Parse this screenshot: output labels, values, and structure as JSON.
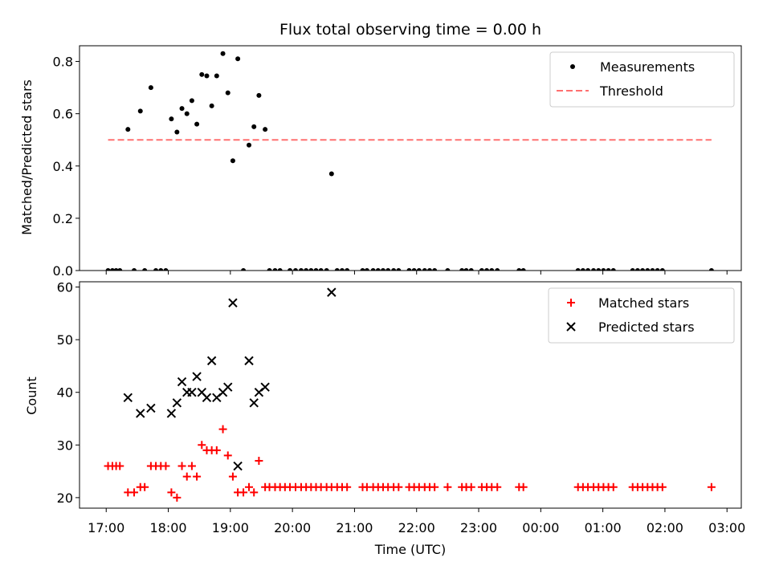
{
  "chart_data": [
    {
      "type": "scatter",
      "title": "Flux total observing time = 0.00 h",
      "ylabel": "Matched/Predicted stars",
      "xlabel": "",
      "ylim": [
        0,
        0.86
      ],
      "xlim_hours": [
        16.57,
        27.23
      ],
      "yticks": [
        0,
        0.2,
        0.4,
        0.6,
        0.8
      ],
      "ytick_labels": [
        "0.0",
        "0.2",
        "0.4",
        "0.6",
        "0.8"
      ],
      "legend_position": "top-right",
      "series": [
        {
          "name": "Measurements",
          "marker": "dot",
          "color": "#000000",
          "points": [
            [
              17.35,
              0.54
            ],
            [
              17.55,
              0.61
            ],
            [
              17.72,
              0.7
            ],
            [
              18.05,
              0.58
            ],
            [
              18.14,
              0.53
            ],
            [
              18.22,
              0.62
            ],
            [
              18.3,
              0.6
            ],
            [
              18.38,
              0.65
            ],
            [
              18.46,
              0.56
            ],
            [
              18.54,
              0.75
            ],
            [
              18.62,
              0.745
            ],
            [
              18.7,
              0.63
            ],
            [
              18.78,
              0.745
            ],
            [
              18.88,
              0.83
            ],
            [
              18.96,
              0.68
            ],
            [
              19.04,
              0.42
            ],
            [
              19.12,
              0.81
            ],
            [
              19.3,
              0.48
            ],
            [
              19.38,
              0.55
            ],
            [
              19.46,
              0.67
            ],
            [
              19.56,
              0.54
            ],
            [
              20.63,
              0.37
            ],
            [
              17.03,
              0
            ],
            [
              17.1,
              0
            ],
            [
              17.16,
              0
            ],
            [
              17.22,
              0
            ],
            [
              17.45,
              0
            ],
            [
              17.62,
              0
            ],
            [
              17.8,
              0
            ],
            [
              17.88,
              0
            ],
            [
              17.96,
              0
            ],
            [
              19.21,
              0
            ],
            [
              19.63,
              0
            ],
            [
              19.72,
              0
            ],
            [
              19.8,
              0
            ],
            [
              19.96,
              0
            ],
            [
              20.05,
              0
            ],
            [
              20.14,
              0
            ],
            [
              20.22,
              0
            ],
            [
              20.3,
              0
            ],
            [
              20.38,
              0
            ],
            [
              20.46,
              0
            ],
            [
              20.55,
              0
            ],
            [
              20.72,
              0
            ],
            [
              20.8,
              0
            ],
            [
              20.88,
              0
            ],
            [
              21.13,
              0
            ],
            [
              21.2,
              0
            ],
            [
              21.3,
              0
            ],
            [
              21.38,
              0
            ],
            [
              21.46,
              0
            ],
            [
              21.54,
              0
            ],
            [
              21.63,
              0
            ],
            [
              21.71,
              0
            ],
            [
              21.88,
              0
            ],
            [
              21.96,
              0
            ],
            [
              22.04,
              0
            ],
            [
              22.13,
              0
            ],
            [
              22.21,
              0
            ],
            [
              22.29,
              0
            ],
            [
              22.5,
              0
            ],
            [
              22.73,
              0
            ],
            [
              22.8,
              0
            ],
            [
              22.88,
              0
            ],
            [
              23.05,
              0
            ],
            [
              23.13,
              0
            ],
            [
              23.21,
              0
            ],
            [
              23.3,
              0
            ],
            [
              23.65,
              0
            ],
            [
              23.72,
              0
            ],
            [
              24.6,
              0
            ],
            [
              24.68,
              0
            ],
            [
              24.76,
              0
            ],
            [
              24.85,
              0
            ],
            [
              24.93,
              0
            ],
            [
              25.01,
              0
            ],
            [
              25.09,
              0
            ],
            [
              25.17,
              0
            ],
            [
              25.48,
              0
            ],
            [
              25.56,
              0
            ],
            [
              25.64,
              0
            ],
            [
              25.72,
              0
            ],
            [
              25.8,
              0
            ],
            [
              25.88,
              0
            ],
            [
              25.96,
              0
            ],
            [
              26.75,
              0
            ]
          ]
        },
        {
          "name": "Threshold",
          "style": "dashed",
          "color": "#ff7070",
          "x": [
            17.03,
            26.75
          ],
          "y": [
            0.5,
            0.5
          ]
        }
      ]
    },
    {
      "type": "scatter",
      "title": "",
      "ylabel": "Count",
      "xlabel": "Time (UTC)",
      "ylim": [
        18,
        61
      ],
      "xlim_hours": [
        16.57,
        27.23
      ],
      "yticks": [
        20,
        30,
        40,
        50,
        60
      ],
      "ytick_labels": [
        "20",
        "30",
        "40",
        "50",
        "60"
      ],
      "xticks_hours": [
        17,
        18,
        19,
        20,
        21,
        22,
        23,
        24,
        25,
        26,
        27
      ],
      "xtick_labels": [
        "17:00",
        "18:00",
        "19:00",
        "20:00",
        "21:00",
        "22:00",
        "23:00",
        "00:00",
        "01:00",
        "02:00",
        "03:00"
      ],
      "legend_position": "top-right",
      "series": [
        {
          "name": "Matched stars",
          "marker": "plus",
          "color": "#ff0000",
          "points": [
            [
              17.03,
              26
            ],
            [
              17.1,
              26
            ],
            [
              17.16,
              26
            ],
            [
              17.22,
              26
            ],
            [
              17.35,
              21
            ],
            [
              17.45,
              21
            ],
            [
              17.55,
              22
            ],
            [
              17.62,
              22
            ],
            [
              17.72,
              26
            ],
            [
              17.8,
              26
            ],
            [
              17.88,
              26
            ],
            [
              17.96,
              26
            ],
            [
              18.05,
              21
            ],
            [
              18.14,
              20
            ],
            [
              18.22,
              26
            ],
            [
              18.3,
              24
            ],
            [
              18.38,
              26
            ],
            [
              18.46,
              24
            ],
            [
              18.54,
              30
            ],
            [
              18.62,
              29
            ],
            [
              18.7,
              29
            ],
            [
              18.78,
              29
            ],
            [
              18.88,
              33
            ],
            [
              18.96,
              28
            ],
            [
              19.04,
              24
            ],
            [
              19.12,
              21
            ],
            [
              19.21,
              21
            ],
            [
              19.3,
              22
            ],
            [
              19.38,
              21
            ],
            [
              19.46,
              27
            ],
            [
              19.56,
              22
            ],
            [
              19.63,
              22
            ],
            [
              19.72,
              22
            ],
            [
              19.8,
              22
            ],
            [
              19.88,
              22
            ],
            [
              19.96,
              22
            ],
            [
              20.05,
              22
            ],
            [
              20.14,
              22
            ],
            [
              20.22,
              22
            ],
            [
              20.3,
              22
            ],
            [
              20.38,
              22
            ],
            [
              20.46,
              22
            ],
            [
              20.55,
              22
            ],
            [
              20.63,
              22
            ],
            [
              20.72,
              22
            ],
            [
              20.8,
              22
            ],
            [
              20.88,
              22
            ],
            [
              21.13,
              22
            ],
            [
              21.2,
              22
            ],
            [
              21.3,
              22
            ],
            [
              21.38,
              22
            ],
            [
              21.46,
              22
            ],
            [
              21.54,
              22
            ],
            [
              21.63,
              22
            ],
            [
              21.71,
              22
            ],
            [
              21.88,
              22
            ],
            [
              21.96,
              22
            ],
            [
              22.04,
              22
            ],
            [
              22.13,
              22
            ],
            [
              22.21,
              22
            ],
            [
              22.29,
              22
            ],
            [
              22.5,
              22
            ],
            [
              22.73,
              22
            ],
            [
              22.8,
              22
            ],
            [
              22.88,
              22
            ],
            [
              23.05,
              22
            ],
            [
              23.13,
              22
            ],
            [
              23.21,
              22
            ],
            [
              23.3,
              22
            ],
            [
              23.65,
              22
            ],
            [
              23.72,
              22
            ],
            [
              24.6,
              22
            ],
            [
              24.68,
              22
            ],
            [
              24.76,
              22
            ],
            [
              24.85,
              22
            ],
            [
              24.93,
              22
            ],
            [
              25.01,
              22
            ],
            [
              25.09,
              22
            ],
            [
              25.17,
              22
            ],
            [
              25.48,
              22
            ],
            [
              25.56,
              22
            ],
            [
              25.64,
              22
            ],
            [
              25.72,
              22
            ],
            [
              25.8,
              22
            ],
            [
              25.88,
              22
            ],
            [
              25.96,
              22
            ],
            [
              26.75,
              22
            ]
          ]
        },
        {
          "name": "Predicted stars",
          "marker": "x",
          "color": "#000000",
          "points": [
            [
              17.35,
              39
            ],
            [
              17.55,
              36
            ],
            [
              17.72,
              37
            ],
            [
              18.05,
              36
            ],
            [
              18.14,
              38
            ],
            [
              18.22,
              42
            ],
            [
              18.3,
              40
            ],
            [
              18.38,
              40
            ],
            [
              18.46,
              43
            ],
            [
              18.54,
              40
            ],
            [
              18.62,
              39
            ],
            [
              18.7,
              46
            ],
            [
              18.78,
              39
            ],
            [
              18.88,
              40
            ],
            [
              18.96,
              41
            ],
            [
              19.04,
              57
            ],
            [
              19.12,
              26
            ],
            [
              19.3,
              46
            ],
            [
              19.38,
              38
            ],
            [
              19.46,
              40
            ],
            [
              19.56,
              41
            ],
            [
              20.63,
              59
            ]
          ]
        }
      ]
    }
  ]
}
